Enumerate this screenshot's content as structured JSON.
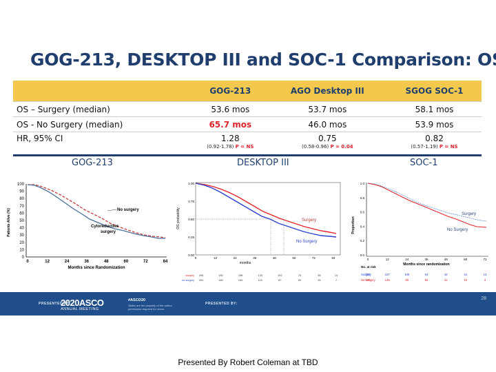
{
  "slide": {
    "title": "GOG-213, DESKTOP III and SOC-1 Comparison: OS",
    "page_number": "28",
    "presented_by": "Presented By Robert Coleman at TBD"
  },
  "table": {
    "headers": [
      "",
      "GOG-213",
      "AGO Desktop III",
      "SGOG SOC-1"
    ],
    "rows": [
      {
        "label": "OS – Surgery (median)",
        "values": [
          "53.6 mos",
          "53.7 mos",
          "58.1 mos"
        ]
      },
      {
        "label": "OS - No Surgery (median)",
        "values": [
          "65.7 mos",
          "46.0 mos",
          "53.9 mos"
        ]
      },
      {
        "label": "HR, 95% CI",
        "values": [
          "1.28",
          "0.75",
          "0.82"
        ],
        "ci": [
          "(0.92-1.78)",
          "(0.58-0.96)",
          "(0.57-1.19)"
        ],
        "p": [
          "P = NS",
          "P = 0.04",
          "P = NS"
        ]
      }
    ]
  },
  "plots": {
    "gog": {
      "title": "GOG-213",
      "ylabel": "Patients Alive (%)",
      "xlabel": "Months since Randomization",
      "yticks": [
        "100",
        "90",
        "80",
        "70",
        "60",
        "50",
        "40",
        "30",
        "20",
        "10",
        "0"
      ],
      "xticks": [
        "0",
        "12",
        "24",
        "36",
        "48",
        "60",
        "72",
        "84"
      ],
      "label_a": "No surgery",
      "label_b": "Cytoreductive",
      "label_b2": "surgery"
    },
    "desktop": {
      "title": "DESKTOP III",
      "ylabel": "OS probability",
      "xlabel": "months",
      "yticks": [
        "1.00",
        "0.75",
        "0.50",
        "0.25",
        "0.00"
      ],
      "xticks": [
        "0",
        "12",
        "24",
        "36",
        "48",
        "60",
        "72",
        "84"
      ],
      "label_a": "Surgery",
      "label_b": "No Surgery",
      "risk_label_a": "surgery",
      "risk_label_b": "no surgery",
      "risk_a": [
        "206",
        "182",
        "158",
        "133",
        "102",
        "76",
        "35",
        "14"
      ],
      "risk_b": [
        "201",
        "180",
        "154",
        "115",
        "87",
        "50",
        "25",
        "7"
      ]
    },
    "soc": {
      "title": "SOC-1",
      "ylabel": "Proportion",
      "xlabel": "Months since randomization",
      "yticks": [
        "1.0",
        "0.8",
        "0.6",
        "0.4",
        "0.2",
        "0.0"
      ],
      "xticks": [
        "0",
        "12",
        "24",
        "36",
        "48",
        "60",
        "72"
      ],
      "label_a": "Surgery",
      "label_b": "No Surgery",
      "risk_title": "No. at risk",
      "risk_label_a": "Surgery",
      "risk_label_b": "No-surgery",
      "risk_a": [
        "182",
        "157",
        "105",
        "64",
        "42",
        "24",
        "13"
      ],
      "risk_b": [
        "175",
        "145",
        "89",
        "56",
        "31",
        "10",
        "3"
      ]
    }
  },
  "footer": {
    "presented_at": "PRESENTED AT:",
    "asco_year": "2020ASCO",
    "asco_sub": "ANNUAL MEETING",
    "hashtag": "#ASCO20",
    "note": "Slides are the property of the author, permission required for reuse.",
    "presented_by_label": "PRESENTED BY:"
  },
  "colors": {
    "navy": "#1f3e6e",
    "header_gold": "#f2c94c",
    "red": "#e0242c",
    "blue": "#2b3fd0",
    "footer": "#1f4e8a"
  }
}
